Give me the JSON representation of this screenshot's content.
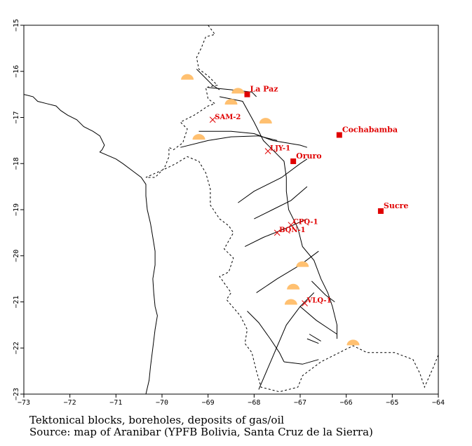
{
  "caption_lines": [
    "Tektonical blocks, boreholes, deposits of gas/oil",
    "Source: map of Aranibar (YPFB Bolivia, Santa Cruz de la Sierra)"
  ],
  "lon_ticks": [
    -73,
    -72,
    -71,
    -70,
    -69,
    -68,
    -67,
    -66,
    -65,
    -64
  ],
  "lat_ticks": [
    -15,
    -16,
    -17,
    -18,
    -19,
    -20,
    -21,
    -22,
    -23
  ],
  "lon_range": [
    -73,
    -64
  ],
  "lat_range": [
    -23,
    -15
  ],
  "cities": [
    {
      "name": "La Paz",
      "lon": -68.15,
      "lat": -16.5
    },
    {
      "name": "Cochabamba",
      "lon": -66.15,
      "lat": -17.38
    },
    {
      "name": "Oruro",
      "lon": -67.15,
      "lat": -17.95
    },
    {
      "name": "Sucre",
      "lon": -65.25,
      "lat": -19.03
    }
  ],
  "boreholes": [
    {
      "name": "SAM-2",
      "lon": -68.9,
      "lat": -17.05
    },
    {
      "name": "LJY-1",
      "lon": -67.7,
      "lat": -17.73
    },
    {
      "name": "CPQ-1",
      "lon": -67.2,
      "lat": -19.33
    },
    {
      "name": "BQN-1",
      "lon": -67.5,
      "lat": -19.5
    },
    {
      "name": "VLQ-1",
      "lon": -66.9,
      "lat": -21.03
    }
  ],
  "deposits": [
    {
      "lon": -69.45,
      "lat": -16.12
    },
    {
      "lon": -68.35,
      "lat": -16.42
    },
    {
      "lon": -68.5,
      "lat": -16.66
    },
    {
      "lon": -67.75,
      "lat": -17.07
    },
    {
      "lon": -69.2,
      "lat": -17.42
    },
    {
      "lon": -66.95,
      "lat": -20.18
    },
    {
      "lon": -67.15,
      "lat": -20.67
    },
    {
      "lon": -67.2,
      "lat": -21.0
    },
    {
      "lon": -65.85,
      "lat": -21.88
    }
  ],
  "colors": {
    "city": "#e00000",
    "borehole": "#e00000",
    "deposit": "#ffc070",
    "line": "#000000"
  },
  "coastline": [
    [
      -73,
      -16.5
    ],
    [
      -72.8,
      -16.55
    ],
    [
      -72.7,
      -16.65
    ],
    [
      -72.5,
      -16.7
    ],
    [
      -72.3,
      -16.75
    ],
    [
      -72.2,
      -16.85
    ],
    [
      -72.05,
      -16.95
    ],
    [
      -71.85,
      -17.05
    ],
    [
      -71.7,
      -17.2
    ],
    [
      -71.5,
      -17.3
    ],
    [
      -71.35,
      -17.4
    ],
    [
      -71.25,
      -17.6
    ],
    [
      -71.3,
      -17.7
    ],
    [
      -71.35,
      -17.75
    ],
    [
      -71.0,
      -17.9
    ],
    [
      -70.85,
      -18.0
    ],
    [
      -70.65,
      -18.15
    ],
    [
      -70.45,
      -18.3
    ],
    [
      -70.35,
      -18.45
    ],
    [
      -70.35,
      -18.7
    ],
    [
      -70.32,
      -19.0
    ],
    [
      -70.25,
      -19.3
    ],
    [
      -70.2,
      -19.6
    ],
    [
      -70.15,
      -19.9
    ],
    [
      -70.15,
      -20.2
    ],
    [
      -70.2,
      -20.5
    ],
    [
      -70.18,
      -20.8
    ],
    [
      -70.15,
      -21.1
    ],
    [
      -70.1,
      -21.3
    ],
    [
      -70.15,
      -21.6
    ],
    [
      -70.2,
      -22.0
    ],
    [
      -70.25,
      -22.4
    ],
    [
      -70.28,
      -22.7
    ],
    [
      -70.35,
      -23.0
    ]
  ],
  "border": [
    [
      -69.0,
      -15.0
    ],
    [
      -68.85,
      -15.2
    ],
    [
      -69.05,
      -15.25
    ],
    [
      -69.15,
      -15.5
    ],
    [
      -69.25,
      -15.7
    ],
    [
      -69.2,
      -15.95
    ],
    [
      -69.0,
      -16.1
    ],
    [
      -68.8,
      -16.3
    ],
    [
      -69.05,
      -16.35
    ],
    [
      -69.0,
      -16.6
    ],
    [
      -68.85,
      -16.7
    ],
    [
      -69.0,
      -16.75
    ],
    [
      -69.3,
      -16.95
    ],
    [
      -69.6,
      -17.1
    ],
    [
      -69.45,
      -17.25
    ],
    [
      -69.55,
      -17.55
    ],
    [
      -69.75,
      -17.7
    ],
    [
      -69.85,
      -17.65
    ],
    [
      -69.85,
      -17.85
    ],
    [
      -69.95,
      -18.1
    ],
    [
      -70.15,
      -18.3
    ],
    [
      -70.35,
      -18.3
    ],
    [
      -69.9,
      -18.1
    ],
    [
      -69.7,
      -18.0
    ],
    [
      -69.45,
      -17.85
    ],
    [
      -69.2,
      -17.95
    ],
    [
      -69.05,
      -18.2
    ],
    [
      -68.95,
      -18.55
    ],
    [
      -68.95,
      -18.9
    ],
    [
      -68.75,
      -19.2
    ],
    [
      -68.55,
      -19.35
    ],
    [
      -68.45,
      -19.5
    ],
    [
      -68.65,
      -19.85
    ],
    [
      -68.45,
      -20.05
    ],
    [
      -68.55,
      -20.35
    ],
    [
      -68.75,
      -20.45
    ],
    [
      -68.5,
      -20.8
    ],
    [
      -68.6,
      -20.95
    ],
    [
      -68.3,
      -21.3
    ],
    [
      -68.15,
      -21.6
    ],
    [
      -68.2,
      -21.9
    ],
    [
      -68.05,
      -22.1
    ],
    [
      -67.95,
      -22.5
    ],
    [
      -67.85,
      -22.85
    ],
    [
      -67.45,
      -22.95
    ],
    [
      -67.05,
      -22.85
    ],
    [
      -66.95,
      -22.6
    ],
    [
      -66.55,
      -22.3
    ],
    [
      -66.15,
      -22.1
    ],
    [
      -65.85,
      -21.95
    ],
    [
      -65.55,
      -22.1
    ],
    [
      -64.95,
      -22.1
    ],
    [
      -64.55,
      -22.25
    ],
    [
      -64.4,
      -22.55
    ],
    [
      -64.3,
      -22.85
    ],
    [
      -64.1,
      -22.4
    ],
    [
      -64.0,
      -22.15
    ]
  ],
  "faults": [
    [
      [
        -69.25,
        -15.95
      ],
      [
        -68.9,
        -16.3
      ],
      [
        -68.75,
        -16.4
      ]
    ],
    [
      [
        -69.0,
        -16.35
      ],
      [
        -68.5,
        -16.4
      ],
      [
        -68.05,
        -16.45
      ],
      [
        -67.95,
        -16.55
      ]
    ],
    [
      [
        -68.75,
        -16.55
      ],
      [
        -68.25,
        -16.65
      ],
      [
        -68.0,
        -17.1
      ],
      [
        -67.8,
        -17.5
      ],
      [
        -67.55,
        -17.75
      ],
      [
        -67.35,
        -17.95
      ],
      [
        -67.3,
        -18.3
      ],
      [
        -67.3,
        -18.6
      ],
      [
        -67.25,
        -19.0
      ],
      [
        -67.05,
        -19.4
      ],
      [
        -66.95,
        -19.8
      ],
      [
        -66.7,
        -20.1
      ],
      [
        -66.55,
        -20.5
      ],
      [
        -66.4,
        -20.8
      ],
      [
        -66.3,
        -21.1
      ],
      [
        -66.2,
        -21.5
      ],
      [
        -66.2,
        -21.8
      ]
    ],
    [
      [
        -69.2,
        -17.3
      ],
      [
        -68.5,
        -17.3
      ],
      [
        -68.0,
        -17.35
      ],
      [
        -67.6,
        -17.5
      ],
      [
        -67.0,
        -17.6
      ],
      [
        -66.85,
        -17.65
      ]
    ],
    [
      [
        -69.6,
        -17.65
      ],
      [
        -69.0,
        -17.5
      ],
      [
        -68.5,
        -17.42
      ],
      [
        -67.9,
        -17.4
      ],
      [
        -67.5,
        -17.5
      ]
    ],
    [
      [
        -68.35,
        -18.85
      ],
      [
        -68.0,
        -18.6
      ],
      [
        -67.4,
        -18.3
      ],
      [
        -67.0,
        -18.0
      ],
      [
        -66.85,
        -17.9
      ]
    ],
    [
      [
        -68.0,
        -19.2
      ],
      [
        -67.6,
        -19.0
      ],
      [
        -67.2,
        -18.8
      ],
      [
        -66.85,
        -18.5
      ]
    ],
    [
      [
        -68.2,
        -19.8
      ],
      [
        -67.8,
        -19.6
      ],
      [
        -67.3,
        -19.4
      ],
      [
        -66.85,
        -19.2
      ]
    ],
    [
      [
        -67.95,
        -20.8
      ],
      [
        -67.5,
        -20.5
      ],
      [
        -67.0,
        -20.2
      ],
      [
        -66.6,
        -19.9
      ]
    ],
    [
      [
        -68.15,
        -21.2
      ],
      [
        -67.9,
        -21.45
      ],
      [
        -67.65,
        -21.8
      ],
      [
        -67.45,
        -22.1
      ],
      [
        -67.35,
        -22.3
      ]
    ],
    [
      [
        -67.9,
        -22.9
      ],
      [
        -67.6,
        -22.2
      ],
      [
        -67.3,
        -21.5
      ],
      [
        -67.0,
        -21.1
      ],
      [
        -66.7,
        -20.8
      ]
    ],
    [
      [
        -66.75,
        -20.55
      ],
      [
        -66.45,
        -20.85
      ],
      [
        -66.25,
        -21.0
      ]
    ],
    [
      [
        -67.0,
        -21.1
      ],
      [
        -66.65,
        -21.4
      ],
      [
        -66.35,
        -21.6
      ],
      [
        -66.2,
        -21.7
      ]
    ],
    [
      [
        -66.8,
        -21.7
      ],
      [
        -66.55,
        -21.85
      ]
    ],
    [
      [
        -66.85,
        -21.8
      ],
      [
        -66.6,
        -21.9
      ]
    ],
    [
      [
        -67.35,
        -22.3
      ],
      [
        -66.95,
        -22.35
      ],
      [
        -66.6,
        -22.25
      ]
    ]
  ]
}
